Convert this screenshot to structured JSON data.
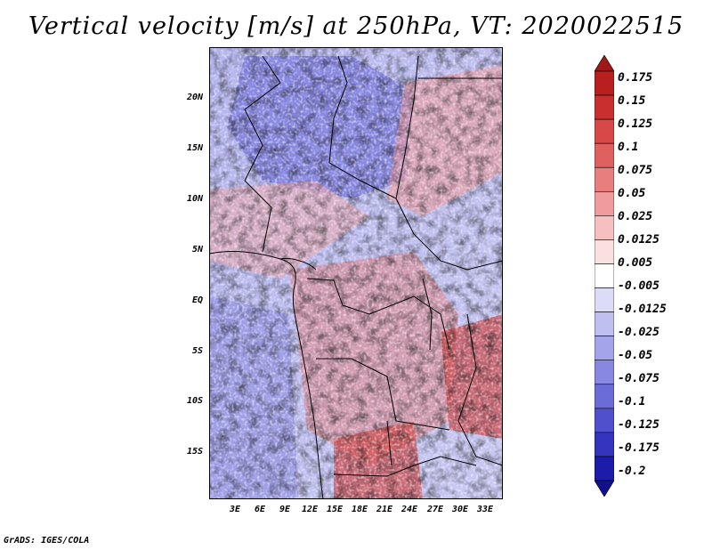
{
  "title": "Vertical velocity [m/s] at 250hPa, VT: 2020022515",
  "credit": "GrADS: IGES/COLA",
  "map": {
    "lat_labels": [
      "20N",
      "15N",
      "10N",
      "5N",
      "EQ",
      "5S",
      "10S",
      "15S"
    ],
    "lon_labels": [
      "3E",
      "6E",
      "9E",
      "12E",
      "15E",
      "18E",
      "21E",
      "24E",
      "27E",
      "30E",
      "33E"
    ]
  },
  "colorbar": {
    "levels": [
      "0.175",
      "0.15",
      "0.125",
      "0.1",
      "0.075",
      "0.05",
      "0.025",
      "0.0125",
      "0.005",
      "-0.005",
      "-0.0125",
      "-0.025",
      "-0.05",
      "-0.075",
      "-0.1",
      "-0.125",
      "-0.175",
      "-0.2"
    ],
    "colors": [
      "#a01818",
      "#b82020",
      "#c83030",
      "#d84848",
      "#e06060",
      "#e87e7e",
      "#f09c9c",
      "#f6c0c0",
      "#fbe0e0",
      "#ffffff",
      "#dcdcf6",
      "#c0c0f0",
      "#a4a4ea",
      "#8888e2",
      "#6c6cd8",
      "#5050cc",
      "#3434be",
      "#1c1ca8",
      "#10108c"
    ]
  }
}
